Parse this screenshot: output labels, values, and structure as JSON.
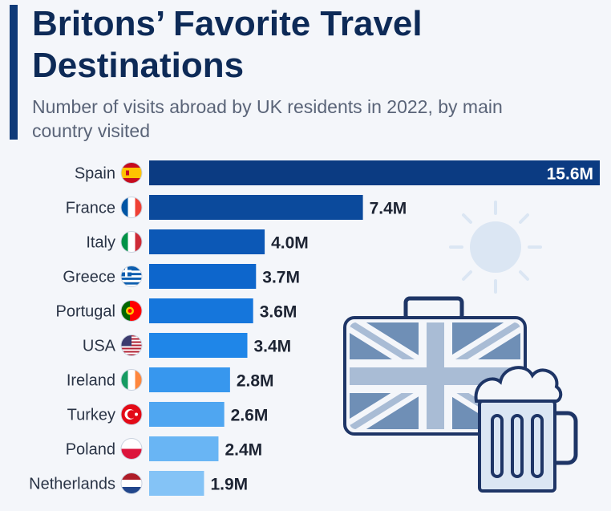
{
  "title": "Britons’ Favorite Travel Destinations",
  "subtitle": "Number of visits abroad by UK residents in 2022, by main country visited",
  "colors": {
    "accent": "#0f3a78",
    "bars": [
      "#0b3b82",
      "#0b4a9c",
      "#0c58b6",
      "#0d66cc",
      "#1576dc",
      "#1f86e8",
      "#3797ee",
      "#4fa6f1",
      "#69b5f4",
      "#84c3f6"
    ]
  },
  "chart_data": {
    "type": "bar",
    "orientation": "horizontal",
    "categories": [
      "Spain",
      "France",
      "Italy",
      "Greece",
      "Portugal",
      "USA",
      "Ireland",
      "Turkey",
      "Poland",
      "Netherlands"
    ],
    "values": [
      15.6,
      7.4,
      4.0,
      3.7,
      3.6,
      3.4,
      2.8,
      2.6,
      2.4,
      1.9
    ],
    "value_labels": [
      "15.6M",
      "7.4M",
      "4.0M",
      "3.7M",
      "3.6M",
      "3.4M",
      "2.8M",
      "2.6M",
      "2.4M",
      "1.9M"
    ],
    "flag_icons": [
      "spain-flag-icon",
      "france-flag-icon",
      "italy-flag-icon",
      "greece-flag-icon",
      "portugal-flag-icon",
      "usa-flag-icon",
      "ireland-flag-icon",
      "turkey-flag-icon",
      "poland-flag-icon",
      "netherlands-flag-icon"
    ],
    "xlim": [
      0,
      15.6
    ],
    "grid": false,
    "legend": "none"
  },
  "decorations": [
    "sun-icon",
    "union-jack-suitcase-icon",
    "beer-mug-icon"
  ]
}
